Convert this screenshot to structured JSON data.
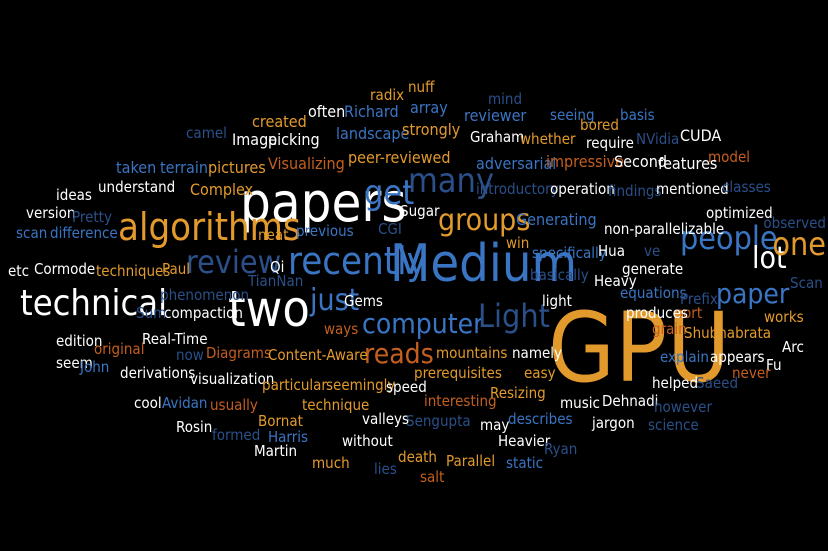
{
  "palette": {
    "background": "#000000",
    "white": "#ffffff",
    "orange": "#e39a2c",
    "blue": "#3a75c4",
    "navy": "#2a4f89",
    "rust": "#c45f1e"
  },
  "words": [
    "GPU",
    "Medium",
    "papers",
    "two",
    "technical",
    "algorithms",
    "recently",
    "get",
    "many",
    "groups",
    "reads",
    "computer",
    "review",
    "Light",
    "people",
    "lot",
    "one",
    "paper",
    "just",
    "radix",
    "nuff",
    "mind",
    "array",
    "created",
    "often",
    "Richard",
    "reviewer",
    "seeing",
    "basis",
    "bored",
    "camel",
    "landscape",
    "strongly",
    "Graham",
    "whether",
    "NVidia",
    "CUDA",
    "require",
    "Image",
    "picking",
    "model",
    "taken",
    "terrain",
    "pictures",
    "Visualizing",
    "peer-reviewed",
    "adversarial",
    "impressive",
    "Second",
    "features",
    "Complex",
    "introductory",
    "operation",
    "findings",
    "mentioned",
    "classes",
    "ideas",
    "understand",
    "version",
    "Pretty",
    "Sugar",
    "optimized",
    "Generating",
    "observed",
    "neat",
    "previous",
    "CGI",
    "non-parallelizable",
    "scan",
    "difference",
    "win",
    "specifically",
    "Hua",
    "ve",
    "etc",
    "Cormode",
    "techniques",
    "Paul",
    "Qi",
    "basically",
    "generate",
    "Scan",
    "TianNan",
    "Heavy",
    "phenomenon",
    "Gems",
    "light",
    "equations",
    "Prefix",
    "Sum",
    "compaction",
    "sort",
    "ways",
    "produces",
    "works",
    "edition",
    "original",
    "Real-Time",
    "grain",
    "Shubhabrata",
    "seem",
    "now",
    "Diagrams",
    "Content-Aware",
    "mountains",
    "namely",
    "explain",
    "Arc",
    "John",
    "derivations",
    "visualization",
    "prerequisites",
    "appears",
    "Fu",
    "particular",
    "seemingly",
    "easy",
    "never",
    "cool",
    "Avidan",
    "usually",
    "speed",
    "helped",
    "Saeed",
    "technique",
    "interesting",
    "Resizing",
    "music",
    "Dehnadi",
    "Bornat",
    "however",
    "Rosin",
    "formed",
    "Harris",
    "valleys",
    "Sengupta",
    "may",
    "jargon",
    "science",
    "Martin",
    "without",
    "describes",
    "Heavier",
    "much",
    "lies",
    "death",
    "Parallel",
    "static",
    "Ryan",
    "salt"
  ]
}
